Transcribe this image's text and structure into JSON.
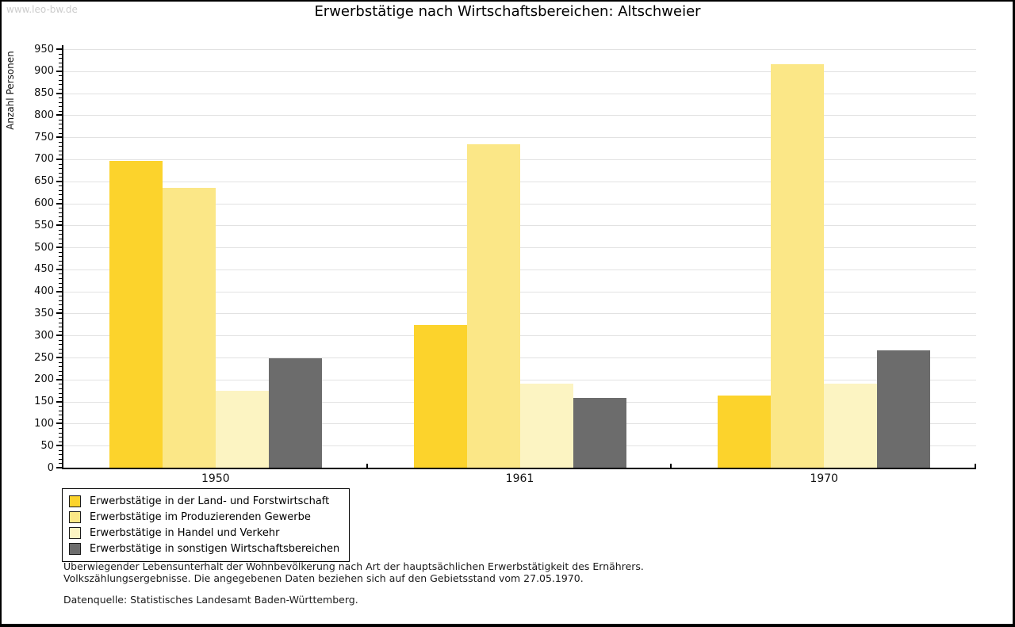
{
  "page": {
    "watermark": "www.leo-bw.de",
    "title": "Erwerbstätige nach Wirtschaftsbereichen: Altschweier"
  },
  "chart_data": {
    "type": "bar",
    "title": "Erwerbstätige nach Wirtschaftsbereichen: Altschweier",
    "xlabel": "",
    "ylabel": "Anzahl Personen",
    "categories": [
      "1950",
      "1961",
      "1970"
    ],
    "series": [
      {
        "name": "Erwerbstätige in der Land- und Forstwirtschaft",
        "color": "#FCD32C",
        "values": [
          696,
          323,
          164
        ]
      },
      {
        "name": "Erwerbstätige im Produzierenden Gewerbe",
        "color": "#FBE787",
        "values": [
          636,
          735,
          916
        ]
      },
      {
        "name": "Erwerbstätige in Handel und Verkehr",
        "color": "#FCF4C2",
        "values": [
          174,
          190,
          190
        ]
      },
      {
        "name": "Erwerbstätige in sonstigen Wirtschaftsbereichen",
        "color": "#6C6C6C",
        "values": [
          248,
          158,
          266
        ]
      }
    ],
    "ylim": [
      0,
      950
    ],
    "ytick_step": 50,
    "minor_tick_step": 10,
    "grid": "horizontal-light-gray",
    "gridline_color": "#e2e2e2",
    "legend_position": "bottom-left"
  },
  "footer": {
    "line1": "Überwiegender Lebensunterhalt der Wohnbevölkerung nach Art der hauptsächlichen Erwerbstätigkeit des Ernährers.",
    "line2": "Volkszählungsergebnisse. Die angegebenen Daten beziehen sich auf den Gebietsstand vom 27.05.1970.",
    "source": "Datenquelle: Statistisches Landesamt Baden-Württemberg."
  }
}
